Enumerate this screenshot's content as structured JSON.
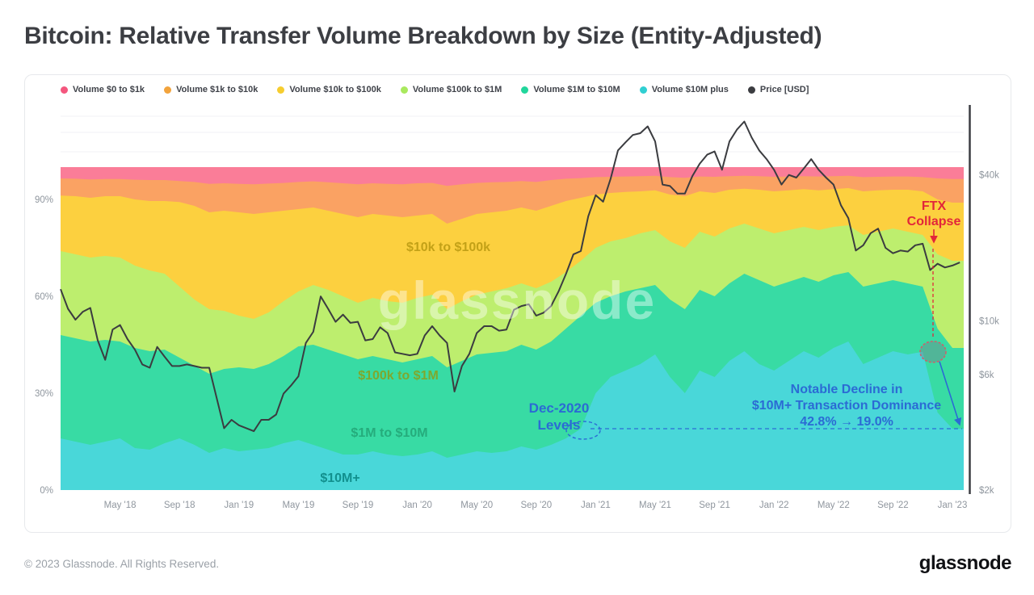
{
  "page": {
    "title": "Bitcoin: Relative Transfer Volume Breakdown by Size (Entity-Adjusted)",
    "watermark": "glassnode",
    "footer_copyright": "© 2023 Glassnode. All Rights Reserved.",
    "brand_logo": "glassnode"
  },
  "legend": [
    {
      "label": "Volume $0 to $1k",
      "color": "#f4567e"
    },
    {
      "label": "Volume $1k to $10k",
      "color": "#f2a33c"
    },
    {
      "label": "Volume $10k to $100k",
      "color": "#f6cd2f"
    },
    {
      "label": "Volume $100k to $1M",
      "color": "#a9e95e"
    },
    {
      "label": "Volume $1M to $10M",
      "color": "#21d69c"
    },
    {
      "label": "Volume $10M plus",
      "color": "#30cfd2"
    },
    {
      "label": "Price [USD]",
      "color": "#3b3c40"
    }
  ],
  "annotations": {
    "ftx": {
      "lines": [
        "FTX",
        "Collapse"
      ],
      "color": "#e2263a"
    },
    "dec2020": {
      "lines": [
        "Dec-2020",
        "Levels"
      ],
      "color": "#2b6bd4"
    },
    "decline": {
      "lines": [
        "Notable Decline in",
        "$10M+ Transaction Dominance",
        "42.8% → 19.0%"
      ],
      "color": "#2b6bd4"
    }
  },
  "area_labels": [
    {
      "id": "lbl-10k-100k",
      "text": "$10k to $100k",
      "color": "#c3a117"
    },
    {
      "id": "lbl-100k-1m",
      "text": "$100k to $1M",
      "color": "#7ea82e"
    },
    {
      "id": "lbl-1m-10m",
      "text": "$1M to $10M",
      "color": "#25ac7c"
    },
    {
      "id": "lbl-10m",
      "text": "$10M+",
      "color": "#12908e"
    }
  ],
  "chart_data": {
    "type": "area",
    "stacking": "percent",
    "title": "Bitcoin: Relative Transfer Volume Breakdown by Size (Entity-Adjusted)",
    "x_unit": "months since 2018-01",
    "x_range": [
      "2018-01",
      "2023-01"
    ],
    "x_ticks": [
      "May '18",
      "Sep '18",
      "Jan '19",
      "May '19",
      "Sep '19",
      "Jan '20",
      "May '20",
      "Sep '20",
      "Jan '21",
      "May '21",
      "Sep '21",
      "Jan '22",
      "May '22",
      "Sep '22",
      "Jan '23"
    ],
    "x_tick_month_index": [
      4,
      8,
      12,
      16,
      20,
      24,
      28,
      32,
      36,
      40,
      44,
      48,
      52,
      56,
      60
    ],
    "y_left": {
      "ticks": [
        "0%",
        "30%",
        "60%",
        "90%"
      ],
      "tick_values": [
        0,
        30,
        60,
        90
      ],
      "range": [
        0,
        100
      ]
    },
    "y_right": {
      "scale": "log",
      "ticks": [
        "$2k",
        "$6k",
        "$10k",
        "$40k"
      ],
      "tick_values_usd_k": [
        2,
        6,
        10,
        40
      ]
    },
    "grid": "faint horizontal in headroom only",
    "legend_position": "top",
    "series_note": "monthly relative share (%) Jan 2018 - Jan 2023, listed bottom band first; shares sum to 100",
    "series": [
      {
        "name": "Volume $10M plus",
        "color": "#49d7d9",
        "values": [
          16,
          15,
          14,
          15,
          16,
          13,
          12.5,
          14.5,
          16,
          14,
          11.5,
          13,
          12,
          12.5,
          13,
          14.5,
          15.5,
          14,
          12.5,
          11,
          11,
          12,
          11,
          10.5,
          11,
          12,
          10,
          11,
          12,
          11.5,
          12,
          13.5,
          12.5,
          14,
          16,
          19,
          30,
          35,
          37,
          39,
          42,
          35,
          30,
          37,
          35,
          40,
          43,
          39,
          37,
          40,
          43,
          41,
          44,
          46,
          39,
          41,
          43,
          42,
          42.8,
          24,
          19
        ]
      },
      {
        "name": "Volume $1M to $10M",
        "color": "#38dba4",
        "values": [
          32,
          32,
          32,
          31.5,
          30,
          31,
          30.5,
          29,
          25,
          24.5,
          24.5,
          24.5,
          26,
          25,
          26,
          27,
          29,
          31,
          31,
          31,
          29.5,
          29.5,
          29.5,
          29,
          29.5,
          29.5,
          28,
          29,
          30,
          31,
          31,
          31.5,
          31,
          32,
          34,
          35,
          28,
          25,
          24.5,
          23.5,
          21.5,
          24,
          26,
          25,
          25,
          24,
          24,
          26,
          26,
          24.5,
          23,
          23.5,
          22.5,
          21.5,
          24,
          23,
          22,
          22,
          20.2,
          26,
          25
        ]
      },
      {
        "name": "Volume $100k to $1M",
        "color": "#bdee6e",
        "values": [
          26,
          26,
          26,
          26,
          26,
          25.5,
          25,
          23.5,
          22,
          20.5,
          20,
          18,
          16,
          15.5,
          16,
          17,
          17,
          18.5,
          18.5,
          18,
          17.5,
          18,
          18,
          18.5,
          19,
          19,
          18,
          18.5,
          18.5,
          19,
          19.5,
          19,
          19,
          18.5,
          17.5,
          17,
          17,
          17,
          16.5,
          17,
          17,
          18,
          19,
          18,
          18.5,
          17,
          15.5,
          16,
          16.5,
          16,
          15.5,
          16,
          15,
          14.5,
          16,
          16,
          16,
          16,
          16,
          23,
          27
        ]
      },
      {
        "name": "Volume $10k to $100k",
        "color": "#fcd03f",
        "values": [
          17.2,
          18,
          18.5,
          18.5,
          19,
          20.5,
          21.5,
          22.5,
          26.2,
          29,
          30,
          31,
          32,
          32.5,
          31,
          28,
          25.5,
          24,
          24.5,
          25.5,
          26.5,
          26,
          26.5,
          26.5,
          25.5,
          25,
          26.5,
          25.5,
          25,
          24.5,
          24,
          23.5,
          24,
          23.5,
          22,
          19.5,
          16.5,
          15,
          14.3,
          13,
          12.3,
          14.5,
          16,
          12.5,
          13.5,
          12,
          10.8,
          12,
          13,
          12.3,
          11.7,
          12.3,
          11.7,
          11.5,
          13.5,
          12.8,
          12,
          13,
          13.5,
          17,
          18
        ]
      },
      {
        "name": "Volume $1k to $10k",
        "color": "#faa263",
        "values": [
          5.3,
          5.4,
          5.7,
          5.3,
          5.3,
          6.1,
          6.5,
          6.5,
          6.5,
          7.4,
          8.8,
          8.5,
          8.8,
          9.2,
          8.9,
          8.6,
          8.4,
          8.1,
          8.8,
          9.5,
          10.2,
          9.5,
          9.8,
          10.2,
          10,
          9.6,
          11.7,
          10.7,
          9.6,
          9.3,
          8.9,
          8.2,
          8.9,
          8,
          6.9,
          6.1,
          5.4,
          5,
          4.8,
          4.7,
          4.5,
          5.4,
          5.7,
          4.6,
          5,
          4.2,
          4,
          4.2,
          4.5,
          4.3,
          4,
          4.3,
          4,
          3.8,
          4.4,
          4.2,
          4.1,
          4.1,
          4.4,
          6.5,
          7.3
        ]
      },
      {
        "name": "Volume $0 to $1k",
        "color": "#fa7d98",
        "values": [
          3.5,
          3.6,
          3.8,
          3.7,
          3.7,
          3.9,
          4,
          4,
          4.3,
          4.6,
          5.2,
          5,
          5.2,
          5.3,
          5.1,
          4.9,
          4.6,
          4.4,
          4.7,
          5,
          5.3,
          5,
          5.2,
          5.3,
          5,
          4.9,
          5.8,
          5.3,
          4.9,
          4.7,
          4.6,
          4.3,
          4.6,
          4,
          3.6,
          3.4,
          3.1,
          3,
          2.9,
          2.8,
          2.7,
          3.1,
          3.3,
          2.9,
          3,
          2.8,
          2.7,
          2.8,
          3,
          2.9,
          2.8,
          2.9,
          2.8,
          2.7,
          3.1,
          3,
          2.9,
          2.9,
          3.1,
          3.5,
          3.7
        ]
      }
    ],
    "price": {
      "name": "Price [USD]",
      "color": "#3b3c40",
      "unit": "USD thousands",
      "step_months": 0.5,
      "values": [
        13.5,
        11.2,
        10.1,
        10.9,
        11.3,
        8.3,
        6.9,
        9.2,
        9.6,
        8.4,
        7.6,
        6.6,
        6.4,
        7.8,
        7.1,
        6.5,
        6.5,
        6.6,
        6.5,
        6.4,
        6.4,
        4.8,
        3.6,
        3.9,
        3.7,
        3.6,
        3.5,
        3.9,
        3.9,
        4.1,
        5,
        5.4,
        5.9,
        8.1,
        9,
        12.6,
        11.2,
        9.9,
        10.6,
        9.8,
        9.9,
        8.3,
        8.4,
        9.4,
        8.9,
        7.4,
        7.3,
        7.2,
        7.3,
        8.7,
        9.5,
        8.7,
        8.1,
        5.1,
        6.5,
        7.3,
        8.9,
        9.5,
        9.5,
        9.1,
        9.2,
        11.1,
        11.5,
        11.7,
        10.5,
        10.8,
        11.5,
        13.2,
        15.6,
        18.8,
        19.4,
        27,
        33,
        31,
        38.5,
        50.5,
        54.5,
        58.5,
        59.5,
        63.5,
        55,
        36.5,
        36,
        33.5,
        33.5,
        39.5,
        44.5,
        48.5,
        50,
        42,
        55,
        61.5,
        66.5,
        57,
        50.5,
        46.5,
        42,
        36.5,
        40,
        39,
        42.5,
        46.5,
        42,
        39,
        36.5,
        30,
        26.5,
        19.5,
        20.5,
        23,
        24,
        20,
        19,
        19.5,
        19.3,
        20.5,
        20.8,
        16.2,
        17.2,
        16.6,
        16.9,
        17.4
      ]
    },
    "callout_values": {
      "ftx_peak_dominance_pct": 42.8,
      "post_ftx_dominance_pct": 19.0
    }
  }
}
